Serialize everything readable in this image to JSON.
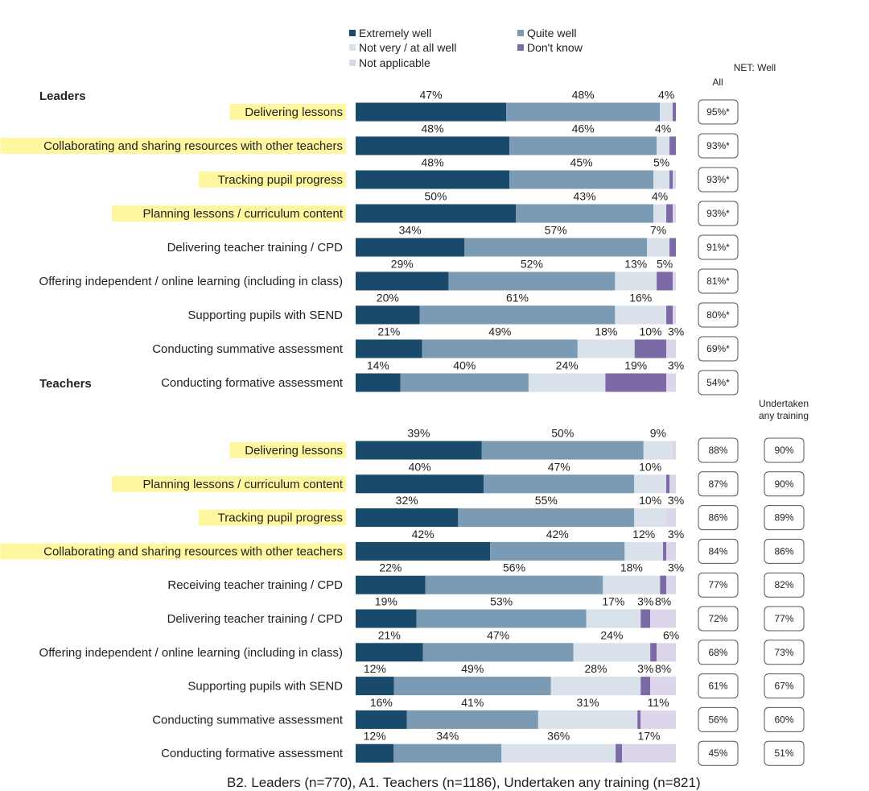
{
  "legend": [
    {
      "label": "Extremely well",
      "color": "#1a4a6b"
    },
    {
      "label": "Quite well",
      "color": "#7a9bb3"
    },
    {
      "label": "Not very / at all well",
      "color": "#d9e2ea"
    },
    {
      "label": "Don't know",
      "color": "#7b6aa6"
    },
    {
      "label": "Not applicable",
      "color": "#ddd6ea"
    }
  ],
  "headers": {
    "net_well": "NET: Well",
    "all": "All",
    "undertaken": "Undertaken any training"
  },
  "caption": "B2. Leaders (n=770), A1. Teachers (n=1186), Undertaken any training (n=821)",
  "chart_data": [
    {
      "type": "bar",
      "orientation": "horizontal-stacked",
      "group": "Leaders",
      "series_names": [
        "Extremely well",
        "Quite well",
        "Not very / at all well",
        "Don't know",
        "Not applicable"
      ],
      "rows": [
        {
          "label": "Delivering lessons",
          "highlight": true,
          "values": [
            47,
            48,
            4,
            1,
            0
          ],
          "labels": [
            "47%",
            "48%",
            "4%",
            "",
            ""
          ],
          "net": "95%*"
        },
        {
          "label": "Collaborating and sharing resources with other teachers",
          "highlight": true,
          "values": [
            48,
            46,
            4,
            2,
            0
          ],
          "labels": [
            "48%",
            "46%",
            "4%",
            "",
            ""
          ],
          "net": "93%*"
        },
        {
          "label": "Tracking pupil progress",
          "highlight": true,
          "values": [
            48,
            45,
            5,
            1,
            1
          ],
          "labels": [
            "48%",
            "45%",
            "5%",
            "",
            ""
          ],
          "net": "93%*"
        },
        {
          "label": "Planning lessons / curriculum content",
          "highlight": true,
          "values": [
            50,
            43,
            4,
            2,
            1
          ],
          "labels": [
            "50%",
            "43%",
            "4%",
            "",
            ""
          ],
          "net": "93%*"
        },
        {
          "label": "Delivering teacher training / CPD",
          "highlight": false,
          "values": [
            34,
            57,
            7,
            2,
            0
          ],
          "labels": [
            "34%",
            "57%",
            "7%",
            "",
            ""
          ],
          "net": "91%*"
        },
        {
          "label": "Offering independent / online learning (including in class)",
          "highlight": false,
          "values": [
            29,
            52,
            13,
            5,
            1
          ],
          "labels": [
            "29%",
            "52%",
            "13%",
            "5%",
            ""
          ],
          "net": "81%*"
        },
        {
          "label": "Supporting pupils with SEND",
          "highlight": false,
          "values": [
            20,
            61,
            16,
            2,
            1
          ],
          "labels": [
            "20%",
            "61%",
            "16%",
            "",
            ""
          ],
          "net": "80%*"
        },
        {
          "label": "Conducting summative assessment",
          "highlight": false,
          "values": [
            21,
            49,
            18,
            10,
            3
          ],
          "labels": [
            "21%",
            "49%",
            "18%",
            "10%",
            "3%"
          ],
          "net": "69%*"
        },
        {
          "label": "Conducting formative assessment",
          "highlight": false,
          "values": [
            14,
            40,
            24,
            19,
            3
          ],
          "labels": [
            "14%",
            "40%",
            "24%",
            "19%",
            "3%"
          ],
          "net": "54%*"
        }
      ]
    },
    {
      "type": "bar",
      "orientation": "horizontal-stacked",
      "group": "Teachers",
      "series_names": [
        "Extremely well",
        "Quite well",
        "Not very / at all well",
        "Don't know",
        "Not applicable"
      ],
      "rows": [
        {
          "label": "Delivering lessons",
          "highlight": true,
          "values": [
            39,
            50,
            9,
            0,
            1
          ],
          "labels": [
            "39%",
            "50%",
            "9%",
            "",
            ""
          ],
          "net": "88%",
          "undertaken": "90%"
        },
        {
          "label": "Planning lessons / curriculum content",
          "highlight": true,
          "values": [
            40,
            47,
            10,
            1,
            2
          ],
          "labels": [
            "40%",
            "47%",
            "10%",
            "",
            ""
          ],
          "net": "87%",
          "undertaken": "90%"
        },
        {
          "label": "Tracking pupil progress",
          "highlight": true,
          "values": [
            32,
            55,
            10,
            0,
            3
          ],
          "labels": [
            "32%",
            "55%",
            "10%",
            "",
            "3%"
          ],
          "net": "86%",
          "undertaken": "89%"
        },
        {
          "label": "Collaborating and sharing resources with other teachers",
          "highlight": true,
          "values": [
            42,
            42,
            12,
            1,
            3
          ],
          "labels": [
            "42%",
            "42%",
            "12%",
            "",
            "3%"
          ],
          "net": "84%",
          "undertaken": "86%"
        },
        {
          "label": "Receiving teacher training / CPD",
          "highlight": false,
          "values": [
            22,
            56,
            18,
            2,
            3
          ],
          "labels": [
            "22%",
            "56%",
            "18%",
            "",
            "3%"
          ],
          "net": "77%",
          "undertaken": "82%"
        },
        {
          "label": "Delivering teacher training / CPD",
          "highlight": false,
          "values": [
            19,
            53,
            17,
            3,
            8
          ],
          "labels": [
            "19%",
            "53%",
            "17%",
            "3%",
            "8%"
          ],
          "net": "72%",
          "undertaken": "77%"
        },
        {
          "label": "Offering independent / online learning (including in class)",
          "highlight": false,
          "values": [
            21,
            47,
            24,
            2,
            6
          ],
          "labels": [
            "21%",
            "47%",
            "24%",
            "",
            "6%"
          ],
          "net": "68%",
          "undertaken": "73%"
        },
        {
          "label": "Supporting pupils with SEND",
          "highlight": false,
          "values": [
            12,
            49,
            28,
            3,
            8
          ],
          "labels": [
            "12%",
            "49%",
            "28%",
            "3%",
            "8%"
          ],
          "net": "61%",
          "undertaken": "67%"
        },
        {
          "label": "Conducting summative assessment",
          "highlight": false,
          "values": [
            16,
            41,
            31,
            1,
            11
          ],
          "labels": [
            "16%",
            "41%",
            "31%",
            "",
            "11%"
          ],
          "net": "56%",
          "undertaken": "60%"
        },
        {
          "label": "Conducting formative assessment",
          "highlight": false,
          "values": [
            12,
            34,
            36,
            2,
            17
          ],
          "labels": [
            "12%",
            "34%",
            "36%",
            "",
            "17%"
          ],
          "net": "45%",
          "undertaken": "51%"
        }
      ]
    }
  ]
}
